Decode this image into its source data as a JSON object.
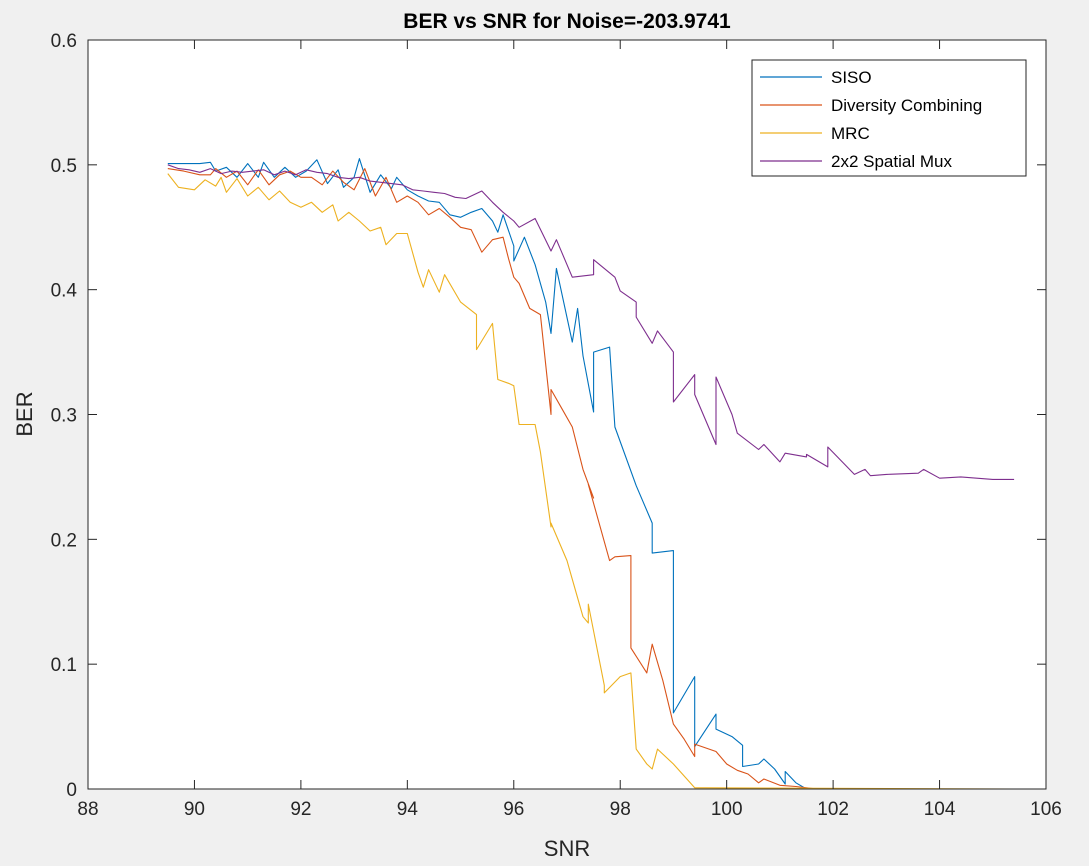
{
  "chart_data": {
    "type": "line",
    "title": "BER vs SNR for Noise=-203.9741",
    "xlabel": "SNR",
    "ylabel": "BER",
    "xlim": [
      88,
      106
    ],
    "ylim": [
      0,
      0.6
    ],
    "xticks": [
      "88",
      "90",
      "92",
      "94",
      "96",
      "98",
      "100",
      "102",
      "104",
      "106"
    ],
    "yticks": [
      "0",
      "0.1",
      "0.2",
      "0.3",
      "0.4",
      "0.5",
      "0.6"
    ],
    "grid": false,
    "legend_position": "top-right",
    "series": [
      {
        "name": "SISO",
        "color": "#0072BD",
        "points": [
          [
            89.5,
            0.501
          ],
          [
            89.9,
            0.501
          ],
          [
            90.1,
            0.501
          ],
          [
            90.3,
            0.502
          ],
          [
            90.4,
            0.495
          ],
          [
            90.6,
            0.498
          ],
          [
            90.8,
            0.49
          ],
          [
            91.0,
            0.501
          ],
          [
            91.2,
            0.49
          ],
          [
            91.3,
            0.502
          ],
          [
            91.5,
            0.49
          ],
          [
            91.7,
            0.498
          ],
          [
            91.9,
            0.49
          ],
          [
            92.1,
            0.495
          ],
          [
            92.3,
            0.504
          ],
          [
            92.5,
            0.485
          ],
          [
            92.7,
            0.496
          ],
          [
            92.8,
            0.482
          ],
          [
            93.0,
            0.49
          ],
          [
            93.1,
            0.505
          ],
          [
            93.3,
            0.478
          ],
          [
            93.5,
            0.492
          ],
          [
            93.7,
            0.481
          ],
          [
            93.8,
            0.49
          ],
          [
            94.0,
            0.48
          ],
          [
            94.2,
            0.475
          ],
          [
            94.4,
            0.471
          ],
          [
            94.6,
            0.47
          ],
          [
            94.8,
            0.46
          ],
          [
            95.0,
            0.458
          ],
          [
            95.2,
            0.462
          ],
          [
            95.4,
            0.465
          ],
          [
            95.6,
            0.455
          ],
          [
            95.7,
            0.446
          ],
          [
            95.8,
            0.46
          ],
          [
            96.0,
            0.435
          ],
          [
            96.0,
            0.423
          ],
          [
            96.2,
            0.442
          ],
          [
            96.4,
            0.42
          ],
          [
            96.6,
            0.39
          ],
          [
            96.7,
            0.365
          ],
          [
            96.8,
            0.417
          ],
          [
            97.1,
            0.358
          ],
          [
            97.2,
            0.385
          ],
          [
            97.3,
            0.347
          ],
          [
            97.5,
            0.302
          ],
          [
            97.5,
            0.35
          ],
          [
            97.8,
            0.354
          ],
          [
            97.9,
            0.29
          ],
          [
            98.3,
            0.243
          ],
          [
            98.6,
            0.213
          ],
          [
            98.6,
            0.189
          ],
          [
            98.8,
            0.19
          ],
          [
            99.0,
            0.191
          ],
          [
            99.0,
            0.061
          ],
          [
            99.4,
            0.09
          ],
          [
            99.4,
            0.034
          ],
          [
            99.8,
            0.06
          ],
          [
            99.8,
            0.048
          ],
          [
            100.1,
            0.042
          ],
          [
            100.3,
            0.035
          ],
          [
            100.3,
            0.018
          ],
          [
            100.6,
            0.02
          ],
          [
            100.7,
            0.024
          ],
          [
            100.9,
            0.016
          ],
          [
            101.1,
            0.004
          ],
          [
            101.1,
            0.014
          ],
          [
            101.3,
            0.005
          ],
          [
            101.5,
            0.0
          ],
          [
            105.4,
            0.0
          ]
        ]
      },
      {
        "name": "Diversity Combining",
        "color": "#D95319",
        "points": [
          [
            89.5,
            0.497
          ],
          [
            89.8,
            0.495
          ],
          [
            90.1,
            0.492
          ],
          [
            90.3,
            0.492
          ],
          [
            90.4,
            0.497
          ],
          [
            90.6,
            0.49
          ],
          [
            90.8,
            0.495
          ],
          [
            91.0,
            0.484
          ],
          [
            91.2,
            0.496
          ],
          [
            91.4,
            0.484
          ],
          [
            91.6,
            0.492
          ],
          [
            91.8,
            0.495
          ],
          [
            92.0,
            0.49
          ],
          [
            92.2,
            0.49
          ],
          [
            92.4,
            0.484
          ],
          [
            92.6,
            0.495
          ],
          [
            92.8,
            0.486
          ],
          [
            93.0,
            0.48
          ],
          [
            93.2,
            0.497
          ],
          [
            93.4,
            0.475
          ],
          [
            93.6,
            0.49
          ],
          [
            93.8,
            0.47
          ],
          [
            94.0,
            0.475
          ],
          [
            94.2,
            0.47
          ],
          [
            94.4,
            0.46
          ],
          [
            94.6,
            0.465
          ],
          [
            94.8,
            0.458
          ],
          [
            95.0,
            0.45
          ],
          [
            95.2,
            0.448
          ],
          [
            95.4,
            0.43
          ],
          [
            95.6,
            0.44
          ],
          [
            95.8,
            0.442
          ],
          [
            95.9,
            0.425
          ],
          [
            96.0,
            0.41
          ],
          [
            96.1,
            0.405
          ],
          [
            96.2,
            0.395
          ],
          [
            96.3,
            0.385
          ],
          [
            96.5,
            0.38
          ],
          [
            96.7,
            0.3
          ],
          [
            96.7,
            0.32
          ],
          [
            96.9,
            0.305
          ],
          [
            97.1,
            0.29
          ],
          [
            97.3,
            0.256
          ],
          [
            97.5,
            0.233
          ],
          [
            97.4,
            0.244
          ],
          [
            97.8,
            0.183
          ],
          [
            97.9,
            0.186
          ],
          [
            98.2,
            0.187
          ],
          [
            98.2,
            0.113
          ],
          [
            98.5,
            0.093
          ],
          [
            98.6,
            0.116
          ],
          [
            98.8,
            0.087
          ],
          [
            99.0,
            0.052
          ],
          [
            99.2,
            0.04
          ],
          [
            99.4,
            0.026
          ],
          [
            99.4,
            0.036
          ],
          [
            99.8,
            0.03
          ],
          [
            100.0,
            0.02
          ],
          [
            100.2,
            0.015
          ],
          [
            100.4,
            0.012
          ],
          [
            100.6,
            0.005
          ],
          [
            100.7,
            0.008
          ],
          [
            101.0,
            0.003
          ],
          [
            101.3,
            0.002
          ],
          [
            101.7,
            0.0
          ],
          [
            105.4,
            0.0
          ]
        ]
      },
      {
        "name": "MRC",
        "color": "#EDB120",
        "points": [
          [
            89.5,
            0.493
          ],
          [
            89.7,
            0.482
          ],
          [
            90.0,
            0.48
          ],
          [
            90.2,
            0.488
          ],
          [
            90.4,
            0.483
          ],
          [
            90.5,
            0.49
          ],
          [
            90.6,
            0.478
          ],
          [
            90.8,
            0.489
          ],
          [
            91.0,
            0.475
          ],
          [
            91.2,
            0.482
          ],
          [
            91.4,
            0.472
          ],
          [
            91.6,
            0.479
          ],
          [
            91.8,
            0.47
          ],
          [
            92.0,
            0.466
          ],
          [
            92.2,
            0.47
          ],
          [
            92.4,
            0.462
          ],
          [
            92.6,
            0.468
          ],
          [
            92.7,
            0.455
          ],
          [
            92.9,
            0.462
          ],
          [
            93.1,
            0.455
          ],
          [
            93.3,
            0.447
          ],
          [
            93.5,
            0.45
          ],
          [
            93.6,
            0.436
          ],
          [
            93.8,
            0.445
          ],
          [
            94.0,
            0.445
          ],
          [
            94.2,
            0.414
          ],
          [
            94.3,
            0.402
          ],
          [
            94.4,
            0.416
          ],
          [
            94.6,
            0.398
          ],
          [
            94.7,
            0.412
          ],
          [
            95.0,
            0.39
          ],
          [
            95.3,
            0.38
          ],
          [
            95.3,
            0.352
          ],
          [
            95.6,
            0.373
          ],
          [
            95.7,
            0.328
          ],
          [
            95.9,
            0.325
          ],
          [
            96.0,
            0.323
          ],
          [
            96.1,
            0.292
          ],
          [
            96.4,
            0.292
          ],
          [
            96.5,
            0.27
          ],
          [
            96.7,
            0.21
          ],
          [
            96.7,
            0.213
          ],
          [
            97.0,
            0.183
          ],
          [
            97.1,
            0.168
          ],
          [
            97.3,
            0.138
          ],
          [
            97.4,
            0.133
          ],
          [
            97.4,
            0.148
          ],
          [
            97.7,
            0.083
          ],
          [
            97.7,
            0.077
          ],
          [
            98.0,
            0.09
          ],
          [
            98.2,
            0.093
          ],
          [
            98.3,
            0.032
          ],
          [
            98.5,
            0.02
          ],
          [
            98.6,
            0.016
          ],
          [
            98.7,
            0.032
          ],
          [
            99.0,
            0.02
          ],
          [
            99.4,
            0.001
          ],
          [
            99.6,
            0.001
          ],
          [
            105.4,
            0.0
          ]
        ]
      },
      {
        "name": "2x2 Spatial Mux",
        "color": "#7E2F8E",
        "points": [
          [
            89.5,
            0.5
          ],
          [
            89.7,
            0.497
          ],
          [
            89.9,
            0.496
          ],
          [
            90.1,
            0.494
          ],
          [
            90.3,
            0.497
          ],
          [
            90.5,
            0.493
          ],
          [
            90.7,
            0.495
          ],
          [
            90.9,
            0.494
          ],
          [
            91.1,
            0.495
          ],
          [
            91.3,
            0.496
          ],
          [
            91.5,
            0.492
          ],
          [
            91.7,
            0.495
          ],
          [
            91.9,
            0.492
          ],
          [
            92.1,
            0.496
          ],
          [
            92.3,
            0.494
          ],
          [
            92.5,
            0.493
          ],
          [
            92.7,
            0.49
          ],
          [
            92.9,
            0.489
          ],
          [
            93.1,
            0.49
          ],
          [
            93.3,
            0.487
          ],
          [
            93.5,
            0.486
          ],
          [
            93.7,
            0.485
          ],
          [
            93.9,
            0.484
          ],
          [
            94.1,
            0.48
          ],
          [
            94.3,
            0.479
          ],
          [
            94.5,
            0.478
          ],
          [
            94.7,
            0.477
          ],
          [
            94.9,
            0.474
          ],
          [
            95.1,
            0.473
          ],
          [
            95.4,
            0.479
          ],
          [
            95.6,
            0.47
          ],
          [
            95.8,
            0.462
          ],
          [
            96.0,
            0.455
          ],
          [
            96.1,
            0.45
          ],
          [
            96.4,
            0.457
          ],
          [
            96.7,
            0.431
          ],
          [
            96.8,
            0.44
          ],
          [
            96.9,
            0.43
          ],
          [
            97.1,
            0.41
          ],
          [
            97.5,
            0.412
          ],
          [
            97.5,
            0.424
          ],
          [
            97.9,
            0.41
          ],
          [
            98.0,
            0.399
          ],
          [
            98.3,
            0.39
          ],
          [
            98.3,
            0.378
          ],
          [
            98.6,
            0.357
          ],
          [
            98.7,
            0.367
          ],
          [
            99.0,
            0.35
          ],
          [
            99.0,
            0.31
          ],
          [
            99.4,
            0.332
          ],
          [
            99.4,
            0.316
          ],
          [
            99.8,
            0.276
          ],
          [
            99.8,
            0.33
          ],
          [
            100.1,
            0.3
          ],
          [
            100.2,
            0.285
          ],
          [
            100.6,
            0.272
          ],
          [
            100.7,
            0.276
          ],
          [
            101.0,
            0.262
          ],
          [
            101.1,
            0.269
          ],
          [
            101.5,
            0.266
          ],
          [
            101.5,
            0.268
          ],
          [
            101.9,
            0.258
          ],
          [
            101.9,
            0.274
          ],
          [
            102.4,
            0.252
          ],
          [
            102.6,
            0.256
          ],
          [
            102.7,
            0.251
          ],
          [
            103.0,
            0.252
          ],
          [
            103.6,
            0.253
          ],
          [
            103.7,
            0.256
          ],
          [
            104.0,
            0.249
          ],
          [
            104.4,
            0.25
          ],
          [
            105.0,
            0.248
          ],
          [
            105.4,
            0.248
          ]
        ]
      }
    ]
  }
}
